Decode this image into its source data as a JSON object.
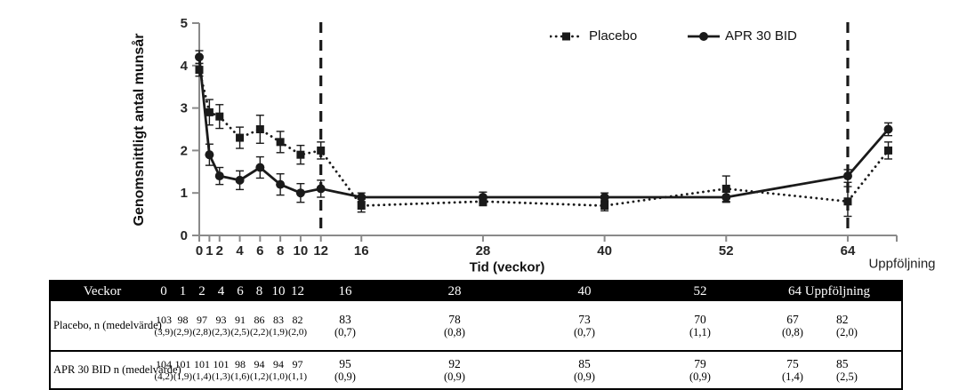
{
  "figure": {
    "colors": {
      "series": "#1a1a1a",
      "axis": "#8a8a8a",
      "tick_text": "#262626",
      "table_header_bg": "#000000",
      "table_header_text": "#ffffff"
    }
  },
  "chart_data": {
    "type": "line",
    "title": "",
    "xlabel": "Tid (veckor)",
    "ylabel": "Genomsnittligt antal munsår",
    "followup_label": "Uppföljning",
    "ylim": [
      0,
      5
    ],
    "yticks": [
      0,
      1,
      2,
      3,
      4,
      5
    ],
    "xticks": [
      0,
      1,
      2,
      4,
      6,
      8,
      10,
      12,
      16,
      28,
      40,
      52,
      64
    ],
    "x": [
      0,
      1,
      2,
      4,
      6,
      8,
      10,
      12,
      16,
      28,
      40,
      52,
      64,
      68
    ],
    "x_followup": 68,
    "dashed_vlines_at_weeks": [
      12,
      64
    ],
    "grid": false,
    "legend_position": "top-inside",
    "series": [
      {
        "name": "Placebo",
        "marker": "square",
        "line_style": "dotted",
        "values": [
          3.9,
          2.9,
          2.8,
          2.3,
          2.5,
          2.2,
          1.9,
          2.0,
          0.7,
          0.8,
          0.7,
          1.1,
          0.8,
          2.0
        ],
        "errors": [
          0.15,
          0.3,
          0.28,
          0.25,
          0.33,
          0.25,
          0.22,
          0.2,
          0.15,
          0.1,
          0.12,
          0.3,
          0.35,
          0.2
        ]
      },
      {
        "name": "APR 30 BID",
        "marker": "circle",
        "line_style": "solid",
        "values": [
          4.2,
          1.9,
          1.4,
          1.3,
          1.6,
          1.2,
          1.0,
          1.1,
          0.9,
          0.9,
          0.9,
          0.9,
          1.4,
          2.5
        ],
        "errors": [
          0.15,
          0.25,
          0.2,
          0.22,
          0.25,
          0.25,
          0.22,
          0.2,
          0.1,
          0.12,
          0.1,
          0.12,
          0.15,
          0.15
        ]
      }
    ]
  },
  "table": {
    "header_label": "Veckor",
    "week_columns": [
      "0",
      "1",
      "2",
      "4",
      "6",
      "8",
      "10",
      "12",
      "16",
      "28",
      "40",
      "52"
    ],
    "merged_header": "64 Uppföljning",
    "rows": [
      {
        "label": "Placebo, n (medelvärde)",
        "n": [
          "103",
          "98",
          "97",
          "93",
          "91",
          "86",
          "83",
          "82",
          "83",
          "78",
          "73",
          "70",
          "67",
          "82"
        ],
        "mean": [
          "(3,9)",
          "(2,9)",
          "(2,8)",
          "(2,3)",
          "(2,5)",
          "(2,2)",
          "(1,9)",
          "(2,0)",
          "(0,7)",
          "(0,8)",
          "(0,7)",
          "(1,1)",
          "(0,8)",
          "(2,0)"
        ]
      },
      {
        "label": "APR 30 BID n (medelvärde)",
        "n": [
          "104",
          "101",
          "101",
          "101",
          "98",
          "94",
          "94",
          "97",
          "95",
          "92",
          "85",
          "79",
          "75",
          "85"
        ],
        "mean": [
          "(4,2)",
          "(1,9)",
          "(1,4)",
          "(1,3)",
          "(1,6)",
          "(1,2)",
          "(1,0)",
          "(1,1)",
          "(0,9)",
          "(0,9)",
          "(0,9)",
          "(0,9)",
          "(1,4)",
          "(2,5)"
        ]
      }
    ]
  }
}
